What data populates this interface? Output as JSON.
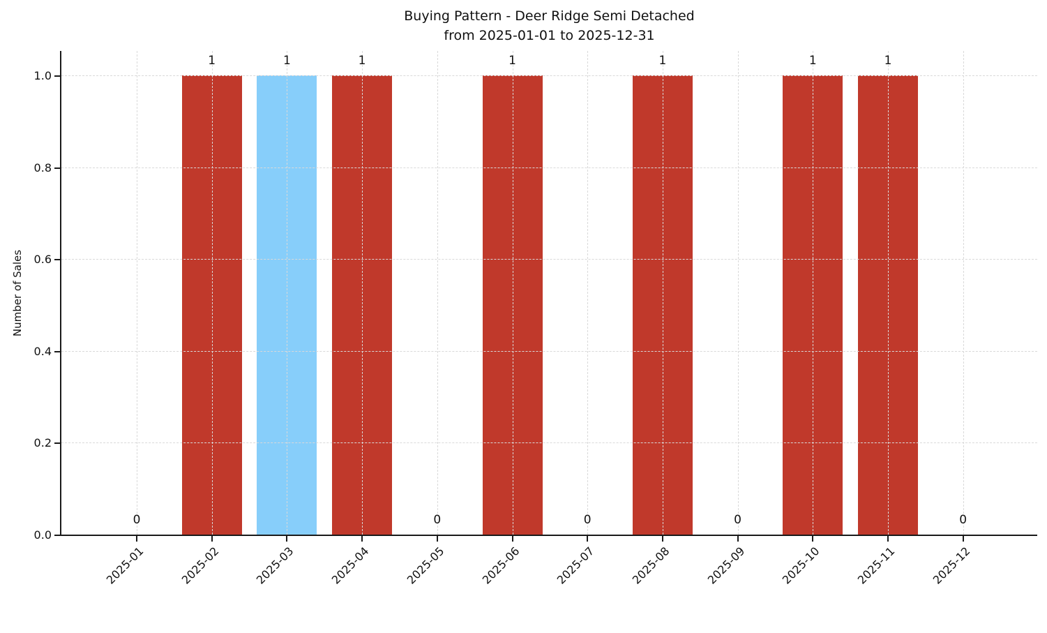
{
  "title": {
    "line1": "Buying Pattern - Deer Ridge Semi Detached",
    "line2": "from 2025-01-01 to 2025-12-31"
  },
  "chart_data": {
    "type": "bar",
    "title": "Buying Pattern - Deer Ridge Semi Detached\nfrom 2025-01-01 to 2025-12-31",
    "xlabel": "",
    "ylabel": "Number of Sales",
    "categories": [
      "2025-01",
      "2025-02",
      "2025-03",
      "2025-04",
      "2025-05",
      "2025-06",
      "2025-07",
      "2025-08",
      "2025-09",
      "2025-10",
      "2025-11",
      "2025-12"
    ],
    "values": [
      0,
      1,
      1,
      1,
      0,
      1,
      0,
      1,
      0,
      1,
      1,
      0
    ],
    "value_labels": [
      "0",
      "1",
      "1",
      "1",
      "0",
      "1",
      "0",
      "1",
      "0",
      "1",
      "1",
      "0"
    ],
    "bar_colors": [
      "#c0392b",
      "#c0392b",
      "#87cefa",
      "#c0392b",
      "#c0392b",
      "#c0392b",
      "#c0392b",
      "#c0392b",
      "#c0392b",
      "#c0392b",
      "#c0392b",
      "#c0392b"
    ],
    "default_bar_color": "#c0392b",
    "highlight_bar_color": "#87cefa",
    "highlight_category": "2025-03",
    "ylim": [
      0,
      1.05
    ],
    "yticks": [
      0.0,
      0.2,
      0.4,
      0.6,
      0.8,
      1.0
    ],
    "ytick_labels": [
      "0.0",
      "0.2",
      "0.4",
      "0.6",
      "0.8",
      "1.0"
    ],
    "grid": true,
    "grid_style": "dashed",
    "grid_color": "#d9d9d9",
    "legend": false,
    "x_tick_rotation_deg": 45
  },
  "colors": {
    "background": "#ffffff",
    "text": "#111111",
    "spine": "#1a1a1a"
  }
}
